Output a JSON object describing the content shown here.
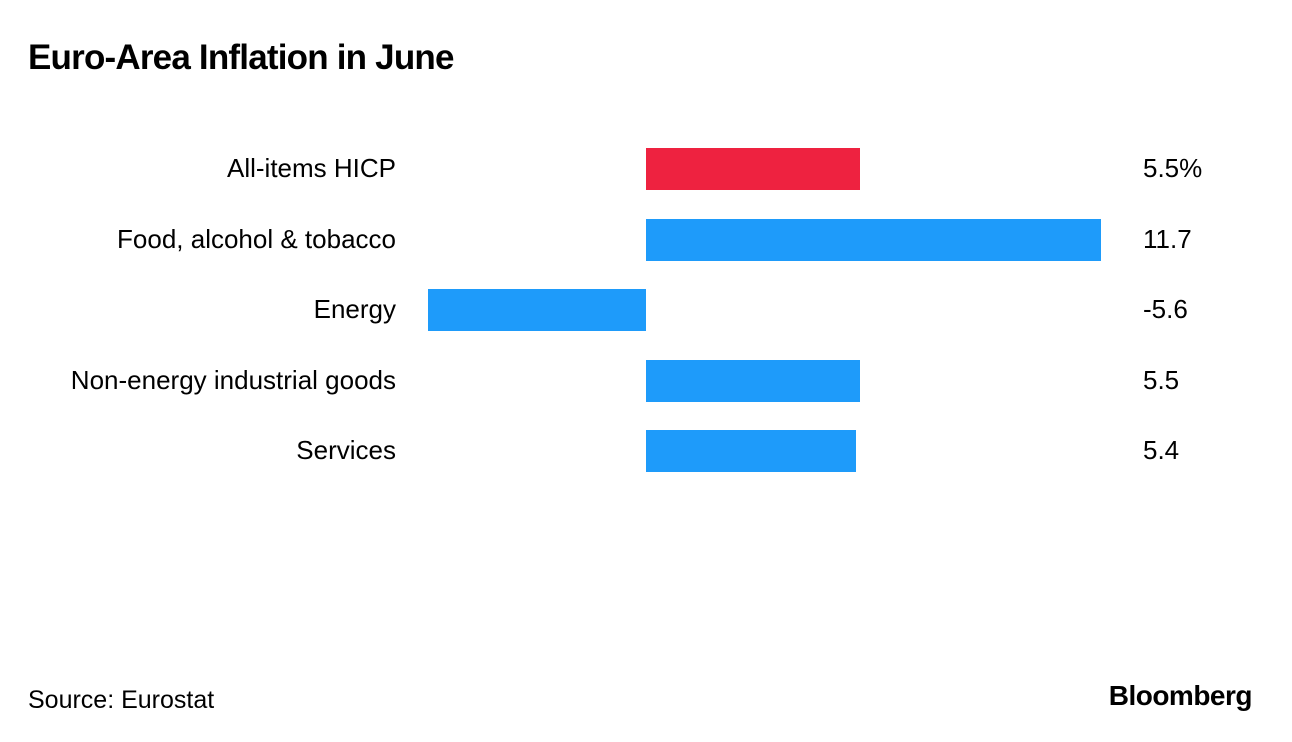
{
  "title": "Euro-Area Inflation in June",
  "source": "Source: Eurostat",
  "brand": "Bloomberg",
  "colors": {
    "highlight": "#EE2240",
    "bar": "#1E9BFA",
    "text": "#000000",
    "background": "#FFFFFF"
  },
  "chart_data": {
    "type": "bar",
    "orientation": "horizontal",
    "title": "Euro-Area Inflation in June",
    "categories": [
      "All-items HICP",
      "Food, alcohol & tobacco",
      "Energy",
      "Non-energy industrial goods",
      "Services"
    ],
    "values": [
      5.5,
      11.7,
      -5.6,
      5.5,
      5.4
    ],
    "value_labels": [
      "5.5%",
      "11.7",
      "-5.6",
      "5.5",
      "5.4"
    ],
    "highlighted_category": "All-items HICP",
    "xlim": [
      -5.6,
      11.7
    ],
    "xlabel": "",
    "ylabel": "",
    "grid": false,
    "legend": "none"
  }
}
